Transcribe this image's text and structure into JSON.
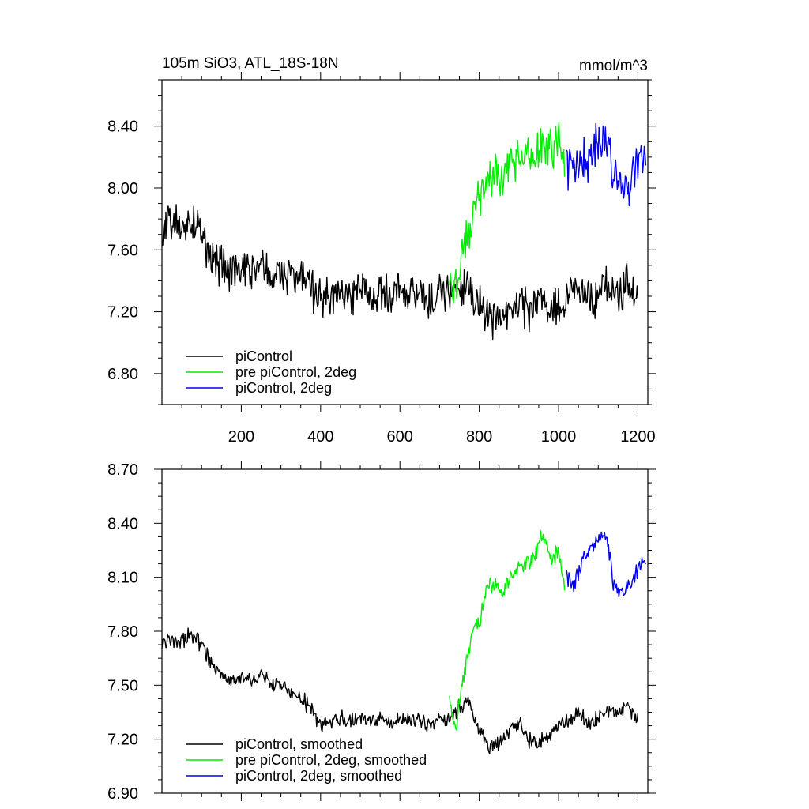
{
  "chart_data": [
    {
      "type": "line",
      "title": "105m SiO3, ATL_18S-18N",
      "units": "mmol/m^3",
      "xlim": [
        0,
        1225
      ],
      "ylim": [
        6.6,
        8.7
      ],
      "x_ticks": [
        200,
        400,
        600,
        800,
        1000,
        1200
      ],
      "y_ticks": [
        6.8,
        7.2,
        7.6,
        8.0,
        8.4
      ],
      "y_tick_labels": [
        "6.80",
        "7.20",
        "7.60",
        "8.00",
        "8.40"
      ],
      "x_tick_labels": [
        "200",
        "400",
        "600",
        "800",
        "1000",
        "1200"
      ],
      "legend_position": "bottom-left",
      "series": [
        {
          "name": "piControl",
          "color": "#000000",
          "x": [
            0,
            25,
            50,
            75,
            100,
            125,
            150,
            175,
            200,
            225,
            250,
            275,
            300,
            325,
            350,
            375,
            400,
            425,
            450,
            475,
            500,
            525,
            550,
            575,
            600,
            625,
            650,
            675,
            700,
            725,
            750,
            775,
            800,
            825,
            850,
            875,
            900,
            925,
            950,
            975,
            1000,
            1025,
            1050,
            1075,
            1100,
            1125,
            1150,
            1175,
            1200
          ],
          "y": [
            7.72,
            7.78,
            7.75,
            7.8,
            7.7,
            7.55,
            7.5,
            7.45,
            7.48,
            7.45,
            7.48,
            7.42,
            7.44,
            7.4,
            7.42,
            7.35,
            7.3,
            7.3,
            7.32,
            7.28,
            7.35,
            7.3,
            7.32,
            7.28,
            7.35,
            7.3,
            7.32,
            7.25,
            7.3,
            7.32,
            7.35,
            7.4,
            7.25,
            7.18,
            7.15,
            7.22,
            7.3,
            7.2,
            7.28,
            7.2,
            7.25,
            7.3,
            7.35,
            7.25,
            7.3,
            7.35,
            7.32,
            7.38,
            7.3
          ]
        },
        {
          "name": "pre piControl, 2deg",
          "color": "#00ee00",
          "x": [
            725,
            740,
            760,
            780,
            800,
            820,
            840,
            860,
            880,
            900,
            920,
            940,
            960,
            980,
            1000,
            1015
          ],
          "y": [
            7.4,
            7.35,
            7.6,
            7.8,
            7.95,
            8.05,
            8.1,
            8.05,
            8.15,
            8.2,
            8.25,
            8.2,
            8.3,
            8.25,
            8.3,
            8.2
          ]
        },
        {
          "name": "piControl, 2deg",
          "color": "#0000ee",
          "x": [
            1020,
            1040,
            1060,
            1080,
            1100,
            1120,
            1140,
            1160,
            1180,
            1200,
            1220
          ],
          "y": [
            8.15,
            8.1,
            8.2,
            8.15,
            8.3,
            8.35,
            8.1,
            8.05,
            8.0,
            8.15,
            8.2
          ]
        }
      ]
    },
    {
      "type": "line",
      "title": "",
      "units": "",
      "xlim": [
        0,
        1225
      ],
      "ylim": [
        6.9,
        8.7
      ],
      "x_ticks": [
        200,
        400,
        600,
        800,
        1000,
        1200
      ],
      "y_ticks": [
        6.9,
        7.2,
        7.5,
        7.8,
        8.1,
        8.4,
        8.7
      ],
      "y_tick_labels": [
        "6.90",
        "7.20",
        "7.50",
        "7.80",
        "8.10",
        "8.40",
        "8.70"
      ],
      "legend_position": "bottom-left",
      "series": [
        {
          "name": "piControl, smoothed",
          "color": "#000000",
          "x": [
            0,
            25,
            50,
            75,
            100,
            125,
            150,
            175,
            200,
            225,
            250,
            275,
            300,
            325,
            350,
            375,
            400,
            425,
            450,
            475,
            500,
            525,
            550,
            575,
            600,
            625,
            650,
            675,
            700,
            725,
            750,
            775,
            800,
            825,
            850,
            875,
            900,
            925,
            950,
            975,
            1000,
            1025,
            1050,
            1075,
            1100,
            1125,
            1150,
            1175,
            1200
          ],
          "y": [
            7.72,
            7.76,
            7.75,
            7.78,
            7.72,
            7.62,
            7.55,
            7.52,
            7.55,
            7.52,
            7.55,
            7.5,
            7.5,
            7.45,
            7.42,
            7.38,
            7.28,
            7.3,
            7.32,
            7.3,
            7.32,
            7.3,
            7.3,
            7.28,
            7.32,
            7.3,
            7.3,
            7.28,
            7.3,
            7.32,
            7.38,
            7.4,
            7.25,
            7.15,
            7.18,
            7.25,
            7.3,
            7.2,
            7.18,
            7.22,
            7.28,
            7.3,
            7.35,
            7.28,
            7.32,
            7.36,
            7.35,
            7.38,
            7.3
          ]
        },
        {
          "name": "pre piControl, 2deg, smoothed",
          "color": "#00ee00",
          "x": [
            725,
            740,
            760,
            780,
            800,
            820,
            840,
            860,
            880,
            900,
            920,
            940,
            960,
            980,
            1000,
            1015
          ],
          "y": [
            7.42,
            7.25,
            7.55,
            7.75,
            7.85,
            8.05,
            8.05,
            8.02,
            8.1,
            8.15,
            8.18,
            8.22,
            8.35,
            8.2,
            8.25,
            8.05
          ]
        },
        {
          "name": "piControl, 2deg, smoothed",
          "color": "#0000ee",
          "x": [
            1020,
            1040,
            1060,
            1080,
            1100,
            1120,
            1140,
            1160,
            1180,
            1200,
            1220
          ],
          "y": [
            8.1,
            8.05,
            8.2,
            8.25,
            8.3,
            8.35,
            8.05,
            8.02,
            8.05,
            8.15,
            8.2
          ]
        }
      ]
    }
  ]
}
